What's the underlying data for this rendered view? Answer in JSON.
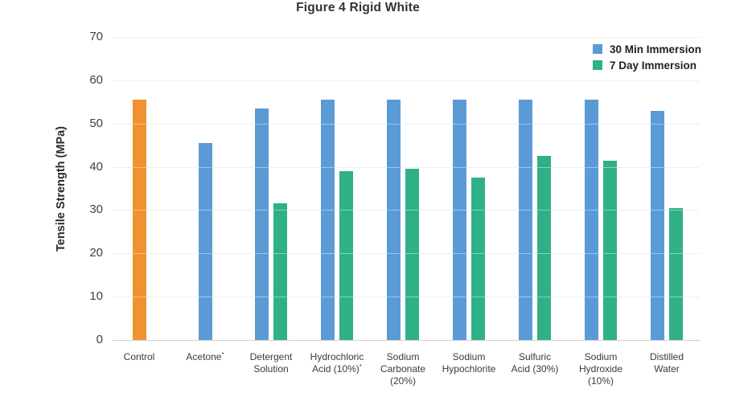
{
  "title": "Figure 4 Rigid White",
  "y_axis": {
    "label": "Tensile Strength (MPa)"
  },
  "legend": {
    "items": [
      {
        "label": "30 Min Immersion",
        "color": "#5B9BD5",
        "series": "30 Min Immersion"
      },
      {
        "label": "7 Day Immersion",
        "color": "#2FB185",
        "series": "7 Day Immersion"
      }
    ]
  },
  "colors": {
    "control_bar": "#F0922D",
    "blue_bar": "#5B9BD5",
    "green_bar": "#2FB185",
    "gridline": "#e3e3e3",
    "baseline": "#cdcdcd",
    "title_text": "#333333",
    "tick_text": "#404040"
  },
  "chart_data": {
    "type": "bar",
    "title": "Figure 4 Rigid White",
    "xlabel": "",
    "ylabel": "Tensile Strength (MPa)",
    "ylim": [
      0,
      70
    ],
    "y_ticks": [
      0,
      10,
      20,
      30,
      40,
      50,
      60,
      70
    ],
    "grid": true,
    "legend_position": "top-right",
    "categories": [
      "Control",
      "Acetone*",
      "Detergent Solution",
      "Hydrochloric Acid (10%)*",
      "Sodium Carbonate (20%)",
      "Sodium Hypochlorite",
      "Sulfuric Acid (30%)",
      "Sodium Hydroxide (10%)",
      "Distilled Water"
    ],
    "category_label_lines": [
      [
        "Control"
      ],
      [
        "Acetone*"
      ],
      [
        "Detergent",
        "Solution"
      ],
      [
        "Hydrochloric",
        "Acid (10%)*"
      ],
      [
        "Sodium",
        "Carbonate",
        "(20%)"
      ],
      [
        "Sodium",
        "Hypochlorite"
      ],
      [
        "Sulfuric",
        "Acid (30%)"
      ],
      [
        "Sodium",
        "Hydroxide",
        "(10%)"
      ],
      [
        "Distilled",
        "Water"
      ]
    ],
    "series": [
      {
        "name": "Control",
        "color": "#F0922D",
        "in_legend": false,
        "values": [
          55.5,
          null,
          null,
          null,
          null,
          null,
          null,
          null,
          null
        ]
      },
      {
        "name": "30 Min Immersion",
        "color": "#5B9BD5",
        "in_legend": true,
        "values": [
          null,
          45.5,
          53.5,
          55.5,
          55.5,
          55.5,
          55.5,
          55.5,
          53
        ]
      },
      {
        "name": "7 Day Immersion",
        "color": "#2FB185",
        "in_legend": true,
        "values": [
          null,
          null,
          31.5,
          39,
          39.5,
          37.5,
          42.5,
          41.5,
          30.5
        ]
      }
    ]
  }
}
